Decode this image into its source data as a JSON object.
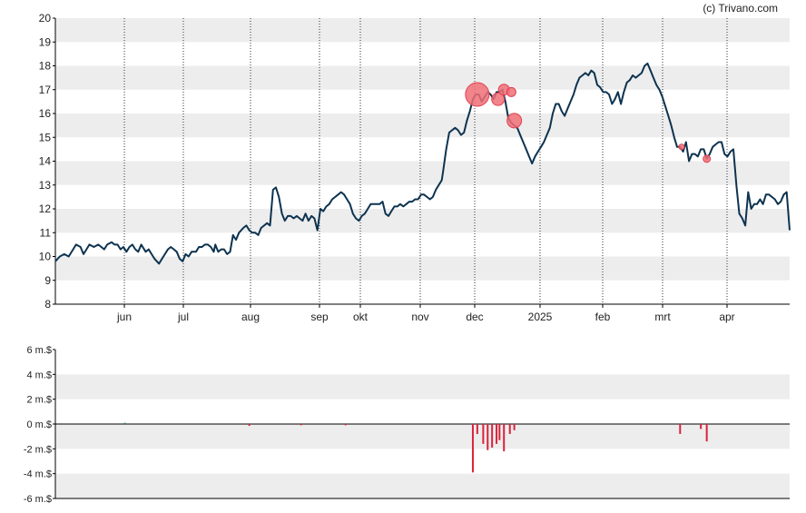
{
  "credit": "(c) Trivano.com",
  "chart_data": [
    {
      "type": "line",
      "ylim": [
        8,
        20
      ],
      "y_ticks": [
        "8",
        "9",
        "10",
        "11",
        "12",
        "13",
        "14",
        "15",
        "16",
        "17",
        "18",
        "19",
        "20"
      ],
      "x_tick_labels": [
        "jun",
        "jul",
        "aug",
        "sep",
        "okt",
        "nov",
        "dec",
        "2025",
        "feb",
        "mrt",
        "apr"
      ],
      "grid": "horizontal bands, dotted monthly verticals",
      "line_color": "#0d3350",
      "price": [
        [
          0,
          9.8
        ],
        [
          3,
          10.0
        ],
        [
          6,
          10.1
        ],
        [
          9,
          10.0
        ],
        [
          12,
          10.3
        ],
        [
          14,
          10.5
        ],
        [
          17,
          10.4
        ],
        [
          19,
          10.1
        ],
        [
          21,
          10.3
        ],
        [
          23,
          10.5
        ],
        [
          26,
          10.4
        ],
        [
          29,
          10.5
        ],
        [
          31,
          10.4
        ],
        [
          33,
          10.3
        ],
        [
          35,
          10.5
        ],
        [
          38,
          10.6
        ],
        [
          40,
          10.5
        ],
        [
          42,
          10.5
        ],
        [
          44,
          10.3
        ],
        [
          46,
          10.4
        ],
        [
          48,
          10.2
        ],
        [
          50,
          10.4
        ],
        [
          52,
          10.5
        ],
        [
          54,
          10.3
        ],
        [
          56,
          10.2
        ],
        [
          58,
          10.5
        ],
        [
          61,
          10.2
        ],
        [
          63,
          10.3
        ],
        [
          65,
          10.1
        ],
        [
          67,
          9.9
        ],
        [
          70,
          9.7
        ],
        [
          72,
          9.9
        ],
        [
          74,
          10.1
        ],
        [
          76,
          10.3
        ],
        [
          78,
          10.4
        ],
        [
          80,
          10.3
        ],
        [
          82,
          10.2
        ],
        [
          84,
          9.9
        ],
        [
          86,
          9.8
        ],
        [
          88,
          10.1
        ],
        [
          90,
          10.0
        ],
        [
          92,
          10.2
        ],
        [
          95,
          10.2
        ],
        [
          97,
          10.4
        ],
        [
          99,
          10.4
        ],
        [
          101,
          10.5
        ],
        [
          103,
          10.5
        ],
        [
          105,
          10.4
        ],
        [
          107,
          10.2
        ],
        [
          108,
          10.5
        ],
        [
          110,
          10.2
        ],
        [
          112,
          10.3
        ],
        [
          114,
          10.3
        ],
        [
          116,
          10.1
        ],
        [
          118,
          10.2
        ],
        [
          120,
          10.9
        ],
        [
          122,
          10.7
        ],
        [
          124,
          11.0
        ],
        [
          127,
          11.2
        ],
        [
          129,
          11.3
        ],
        [
          131,
          11.1
        ],
        [
          133,
          11.0
        ],
        [
          135,
          11.0
        ],
        [
          137,
          10.9
        ],
        [
          139,
          11.2
        ],
        [
          141,
          11.3
        ],
        [
          143,
          11.4
        ],
        [
          145,
          11.3
        ],
        [
          147,
          12.8
        ],
        [
          149,
          12.9
        ],
        [
          151,
          12.5
        ],
        [
          153,
          11.8
        ],
        [
          155,
          11.5
        ],
        [
          157,
          11.7
        ],
        [
          159,
          11.7
        ],
        [
          161,
          11.6
        ],
        [
          163,
          11.7
        ],
        [
          165,
          11.6
        ],
        [
          167,
          11.5
        ],
        [
          169,
          11.8
        ],
        [
          171,
          11.5
        ],
        [
          173,
          11.7
        ],
        [
          175,
          11.6
        ],
        [
          177,
          11.1
        ],
        [
          179,
          12.0
        ],
        [
          181,
          11.9
        ],
        [
          183,
          12.1
        ],
        [
          185,
          12.2
        ],
        [
          187,
          12.4
        ],
        [
          189,
          12.5
        ],
        [
          191,
          12.6
        ],
        [
          193,
          12.7
        ],
        [
          195,
          12.6
        ],
        [
          197,
          12.4
        ],
        [
          199,
          12.2
        ],
        [
          201,
          11.8
        ],
        [
          203,
          11.6
        ],
        [
          205,
          11.5
        ],
        [
          207,
          11.7
        ],
        [
          209,
          11.8
        ],
        [
          211,
          12.0
        ],
        [
          213,
          12.2
        ],
        [
          215,
          12.2
        ],
        [
          217,
          12.2
        ],
        [
          219,
          12.2
        ],
        [
          221,
          12.3
        ],
        [
          223,
          11.8
        ],
        [
          225,
          11.7
        ],
        [
          227,
          11.9
        ],
        [
          229,
          12.1
        ],
        [
          231,
          12.1
        ],
        [
          233,
          12.2
        ],
        [
          235,
          12.1
        ],
        [
          237,
          12.2
        ],
        [
          239,
          12.3
        ],
        [
          241,
          12.3
        ],
        [
          243,
          12.4
        ],
        [
          245,
          12.4
        ],
        [
          247,
          12.6
        ],
        [
          249,
          12.6
        ],
        [
          251,
          12.5
        ],
        [
          253,
          12.4
        ],
        [
          255,
          12.5
        ],
        [
          257,
          12.8
        ],
        [
          259,
          13.0
        ],
        [
          261,
          13.2
        ],
        [
          262,
          13.6
        ],
        [
          264,
          14.5
        ],
        [
          266,
          15.2
        ],
        [
          268,
          15.3
        ],
        [
          270,
          15.4
        ],
        [
          272,
          15.3
        ],
        [
          274,
          15.1
        ],
        [
          276,
          15.2
        ],
        [
          278,
          15.7
        ],
        [
          280,
          16.1
        ],
        [
          282,
          16.6
        ],
        [
          284,
          16.8
        ],
        [
          286,
          16.8
        ],
        [
          288,
          16.5
        ],
        [
          290,
          16.7
        ],
        [
          292,
          16.9
        ],
        [
          294,
          16.8
        ],
        [
          296,
          16.6
        ],
        [
          298,
          16.9
        ],
        [
          300,
          16.9
        ],
        [
          302,
          17.0
        ],
        [
          304,
          16.5
        ],
        [
          306,
          15.8
        ],
        [
          308,
          15.6
        ],
        [
          310,
          15.5
        ],
        [
          312,
          15.4
        ],
        [
          314,
          15.1
        ],
        [
          316,
          14.8
        ],
        [
          318,
          14.5
        ],
        [
          320,
          14.2
        ],
        [
          322,
          13.9
        ],
        [
          324,
          14.2
        ],
        [
          326,
          14.4
        ],
        [
          328,
          14.6
        ],
        [
          330,
          14.8
        ],
        [
          332,
          15.1
        ],
        [
          334,
          15.4
        ],
        [
          336,
          16.0
        ],
        [
          338,
          16.4
        ],
        [
          340,
          16.4
        ],
        [
          342,
          16.1
        ],
        [
          344,
          15.9
        ],
        [
          346,
          16.2
        ],
        [
          348,
          16.5
        ],
        [
          350,
          16.8
        ],
        [
          352,
          17.2
        ],
        [
          354,
          17.5
        ],
        [
          356,
          17.6
        ],
        [
          358,
          17.7
        ],
        [
          360,
          17.6
        ],
        [
          362,
          17.8
        ],
        [
          364,
          17.7
        ],
        [
          366,
          17.2
        ],
        [
          368,
          17.1
        ],
        [
          370,
          16.9
        ],
        [
          372,
          16.9
        ],
        [
          374,
          16.8
        ],
        [
          376,
          16.4
        ],
        [
          378,
          16.6
        ],
        [
          380,
          16.9
        ],
        [
          382,
          16.4
        ],
        [
          384,
          16.9
        ],
        [
          386,
          17.3
        ],
        [
          388,
          17.4
        ],
        [
          390,
          17.6
        ],
        [
          392,
          17.5
        ],
        [
          394,
          17.6
        ],
        [
          396,
          17.7
        ],
        [
          398,
          18.0
        ],
        [
          400,
          18.1
        ],
        [
          402,
          17.8
        ],
        [
          404,
          17.5
        ],
        [
          406,
          17.2
        ],
        [
          408,
          17.0
        ],
        [
          410,
          16.7
        ],
        [
          412,
          16.3
        ],
        [
          414,
          15.9
        ],
        [
          416,
          15.5
        ],
        [
          418,
          15.0
        ],
        [
          420,
          14.6
        ],
        [
          422,
          14.6
        ],
        [
          424,
          14.4
        ],
        [
          426,
          14.8
        ],
        [
          428,
          14.0
        ],
        [
          430,
          14.3
        ],
        [
          432,
          14.3
        ],
        [
          434,
          14.2
        ],
        [
          436,
          14.5
        ],
        [
          438,
          14.5
        ],
        [
          440,
          14.1
        ],
        [
          442,
          14.3
        ],
        [
          444,
          14.6
        ],
        [
          446,
          14.7
        ],
        [
          448,
          14.8
        ],
        [
          450,
          14.8
        ],
        [
          452,
          14.3
        ],
        [
          454,
          14.2
        ],
        [
          456,
          14.4
        ],
        [
          458,
          14.5
        ],
        [
          460,
          13.0
        ],
        [
          462,
          11.8
        ],
        [
          464,
          11.6
        ],
        [
          466,
          11.3
        ],
        [
          468,
          12.7
        ],
        [
          470,
          12.0
        ],
        [
          472,
          12.2
        ],
        [
          474,
          12.2
        ],
        [
          476,
          12.4
        ],
        [
          478,
          12.2
        ],
        [
          480,
          12.6
        ],
        [
          482,
          12.6
        ],
        [
          484,
          12.5
        ],
        [
          486,
          12.4
        ],
        [
          488,
          12.2
        ],
        [
          490,
          12.3
        ],
        [
          492,
          12.6
        ],
        [
          494,
          12.7
        ],
        [
          496,
          11.1
        ]
      ],
      "events": [
        [
          285,
          16.8,
          13
        ],
        [
          299,
          16.6,
          7
        ],
        [
          303,
          17.0,
          6
        ],
        [
          308,
          16.9,
          5
        ],
        [
          310,
          15.7,
          8
        ],
        [
          423,
          14.6,
          3
        ],
        [
          440,
          14.1,
          4
        ]
      ]
    },
    {
      "type": "bar",
      "unit_label": "m.$",
      "ylim": [
        -6,
        6
      ],
      "y_ticks": [
        "6 m.$",
        "4 m.$",
        "2 m.$",
        "0 m.$",
        "-2 m.$",
        "-4 m.$",
        "-6 m.$"
      ],
      "positive_color": "#2e8b57",
      "negative_color": "#d9233c",
      "values": [
        [
          47,
          0.1
        ],
        [
          131,
          -0.15
        ],
        [
          166,
          -0.1
        ],
        [
          196,
          -0.1
        ],
        [
          282,
          -3.9
        ],
        [
          285,
          -0.8
        ],
        [
          289,
          -1.6
        ],
        [
          292,
          -2.1
        ],
        [
          295,
          -1.9
        ],
        [
          298,
          -1.6
        ],
        [
          300,
          -1.3
        ],
        [
          303,
          -2.2
        ],
        [
          307,
          -0.8
        ],
        [
          310,
          -0.5
        ],
        [
          422,
          -0.8
        ],
        [
          436,
          -0.4
        ],
        [
          440,
          -1.4
        ]
      ]
    }
  ]
}
